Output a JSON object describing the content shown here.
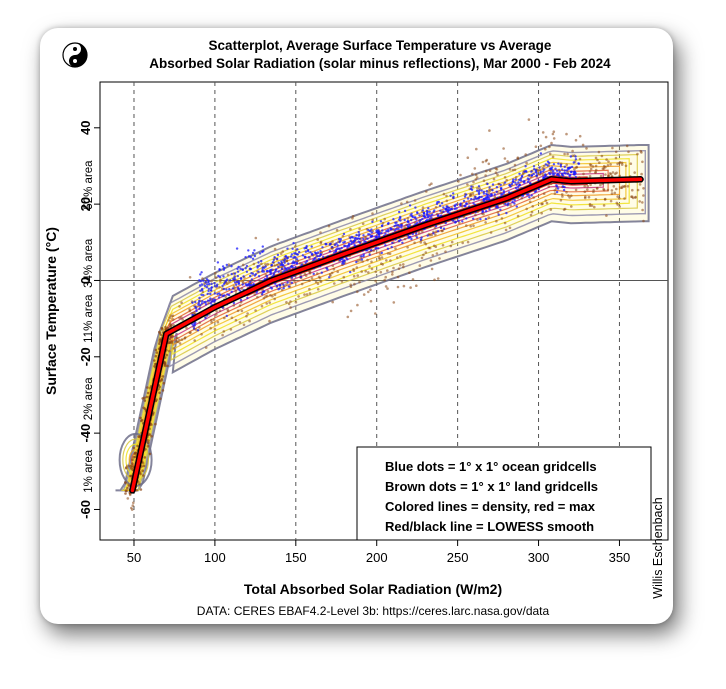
{
  "chart_data": {
    "type": "scatter",
    "title_lines": [
      "Scatterplot, Average Surface Temperature vs Average",
      "Absorbed Solar Radiation (solar minus reflections), Mar 2000 - Feb 2024"
    ],
    "xlabel": "Total Absorbed Solar Radiation (W/m2)",
    "ylabel": "Surface Temperature (°C)",
    "xlim": [
      29,
      380
    ],
    "ylim": [
      -68,
      52
    ],
    "x_ticks": [
      50,
      100,
      150,
      200,
      250,
      300,
      350
    ],
    "y_ticks": [
      40,
      20,
      0,
      -20,
      -40,
      -60
    ],
    "grid": "vertical dashed",
    "zero_line": 0,
    "area_bands": [
      {
        "label": "52% area",
        "y": 25
      },
      {
        "label": "34% area",
        "y": 4.5
      },
      {
        "label": "11% area",
        "y": -10
      },
      {
        "label": "2% area",
        "y": -31
      },
      {
        "label": "1% area",
        "y": -50
      }
    ],
    "lowess_line": {
      "x": [
        49,
        70,
        100,
        135,
        180,
        230,
        280,
        308,
        320,
        363
      ],
      "y": [
        -55,
        -14,
        -7,
        0,
        7,
        14.5,
        21.5,
        26.5,
        26,
        26.5
      ]
    },
    "series": [
      {
        "name": "ocean gridcells",
        "color": "#1a1aff"
      },
      {
        "name": "land gridcells",
        "color": "#8b4513"
      }
    ],
    "legend": {
      "position": "bottom-right",
      "entries": [
        "Blue dots = 1° x 1° ocean gridcells",
        "Brown dots = 1° x 1° land gridcells",
        "Colored lines = density, red = max",
        "Red/black line = LOWESS smooth"
      ]
    },
    "source": "DATA: CERES EBAF4.2-Level 3b: https://ceres.larc.nasa.gov/data",
    "credit": "Willis Eschenbach",
    "colors": {
      "ocean": "#1a1aff",
      "land": "#8b4513",
      "density_low": "#6e6e8a",
      "density_mid": "#f0e020",
      "density_high": "#d80000",
      "lowess": "#ff0000"
    }
  },
  "logo": {
    "icon": "yin-yang-icon"
  }
}
